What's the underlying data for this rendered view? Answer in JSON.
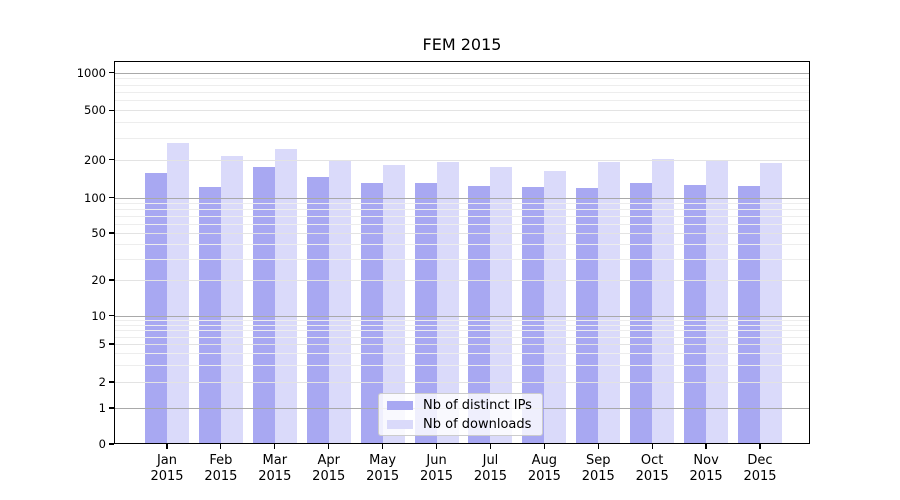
{
  "chart_data": {
    "type": "bar",
    "title": "FEM 2015",
    "categories": [
      "Jan",
      "Feb",
      "Mar",
      "Apr",
      "May",
      "Jun",
      "Jul",
      "Aug",
      "Sep",
      "Oct",
      "Nov",
      "Dec"
    ],
    "category_subline": "2015",
    "series": [
      {
        "name": "Nb of distinct IPs",
        "color": "#a8a8f2",
        "values": [
          157,
          121,
          177,
          147,
          131,
          131,
          124,
          121,
          119,
          131,
          126,
          124
        ]
      },
      {
        "name": "Nb of downloads",
        "color": "#dadafa",
        "values": [
          273,
          215,
          246,
          200,
          183,
          193,
          175,
          163,
          194,
          202,
          197,
          190
        ]
      }
    ],
    "xlabel": "",
    "ylabel": "",
    "y_axis": {
      "scale": "log-with-zero (symlog)",
      "tick_labels": [
        "0",
        "1",
        "2",
        "5",
        "10",
        "20",
        "50",
        "100",
        "200",
        "500",
        "1000"
      ],
      "ylim": [
        0,
        1200
      ],
      "grid": "major and minor horizontal gridlines"
    },
    "legend": {
      "position": "lower center",
      "border_color": "#cccccc"
    },
    "colors": {
      "axis": "#000000",
      "major_grid": "#a9a9a9",
      "minor_grid": "#e3e3e3",
      "faint_grid": "#ededed",
      "background": "#ffffff"
    }
  }
}
